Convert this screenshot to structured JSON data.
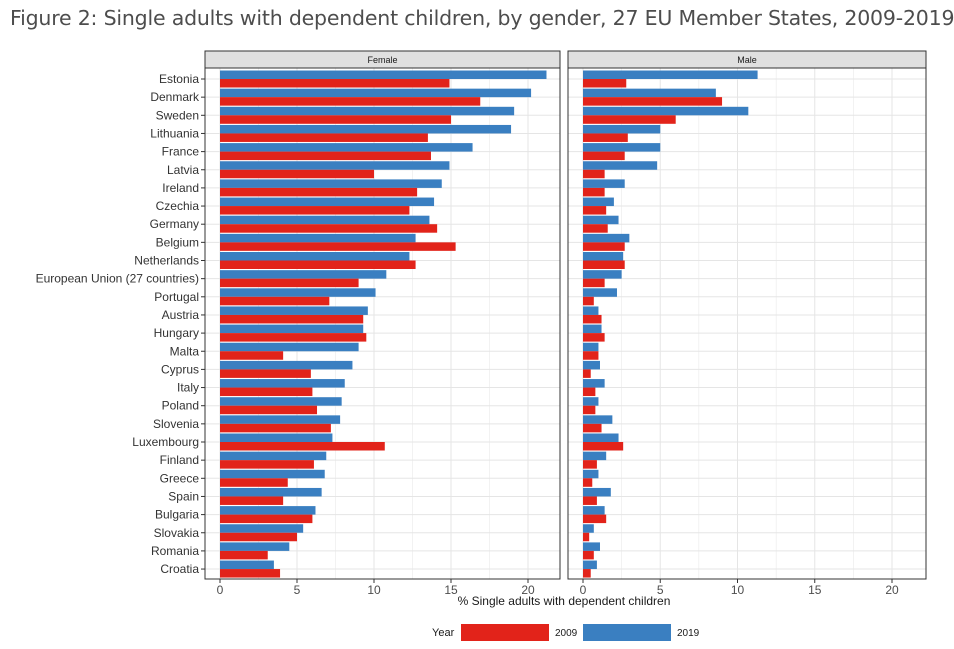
{
  "figure": {
    "title": "Figure 2: Single adults with dependent children, by gender, 27 EU Member States, 2009-2019"
  },
  "colors": {
    "y2009": "#e2231a",
    "y2019": "#3a7fc1",
    "grid": "#e5e5e5",
    "strip_bg": "#e0e0e0",
    "panel_border": "#333333"
  },
  "chart_data": {
    "type": "bar",
    "orientation": "horizontal",
    "facets": [
      "Female",
      "Male"
    ],
    "xlabel": "% Single adults with dependent children",
    "xlim": [
      0,
      22
    ],
    "xticks": [
      0,
      5,
      10,
      15,
      20
    ],
    "grid": true,
    "legend": {
      "title": "Year",
      "position": "bottom",
      "entries": [
        "2009",
        "2019"
      ]
    },
    "categories": [
      "Estonia",
      "Denmark",
      "Sweden",
      "Lithuania",
      "France",
      "Latvia",
      "Ireland",
      "Czechia",
      "Germany",
      "Belgium",
      "Netherlands",
      "European Union (27 countries)",
      "Portugal",
      "Austria",
      "Hungary",
      "Malta",
      "Cyprus",
      "Italy",
      "Poland",
      "Slovenia",
      "Luxembourg",
      "Finland",
      "Greece",
      "Spain",
      "Bulgaria",
      "Slovakia",
      "Romania",
      "Croatia"
    ],
    "series": [
      {
        "name": "2009",
        "facet": "Female",
        "values": [
          14.9,
          16.9,
          15.0,
          13.5,
          13.7,
          10.0,
          12.8,
          12.3,
          14.1,
          15.3,
          12.7,
          9.0,
          7.1,
          9.3,
          9.5,
          4.1,
          5.9,
          6.0,
          6.3,
          7.2,
          10.7,
          6.1,
          4.4,
          4.1,
          6.0,
          5.0,
          3.1,
          3.9
        ]
      },
      {
        "name": "2019",
        "facet": "Female",
        "values": [
          21.2,
          20.2,
          19.1,
          18.9,
          16.4,
          14.9,
          14.4,
          13.9,
          13.6,
          12.7,
          12.3,
          10.8,
          10.1,
          9.6,
          9.3,
          9.0,
          8.6,
          8.1,
          7.9,
          7.8,
          7.3,
          6.9,
          6.8,
          6.6,
          6.2,
          5.4,
          4.5,
          3.5
        ]
      },
      {
        "name": "2009",
        "facet": "Male",
        "values": [
          2.8,
          9.0,
          6.0,
          2.9,
          2.7,
          1.4,
          1.4,
          1.5,
          1.6,
          2.7,
          2.7,
          1.4,
          0.7,
          1.2,
          1.4,
          1.0,
          0.5,
          0.8,
          0.8,
          1.2,
          2.6,
          0.9,
          0.6,
          0.9,
          1.5,
          0.4,
          0.7,
          0.5
        ]
      },
      {
        "name": "2019",
        "facet": "Male",
        "values": [
          11.3,
          8.6,
          10.7,
          5.0,
          5.0,
          4.8,
          2.7,
          2.0,
          2.3,
          3.0,
          2.6,
          2.5,
          2.2,
          1.0,
          1.2,
          1.0,
          1.1,
          1.4,
          1.0,
          1.9,
          2.3,
          1.5,
          1.0,
          1.8,
          1.4,
          0.7,
          1.1,
          0.9
        ]
      }
    ]
  }
}
